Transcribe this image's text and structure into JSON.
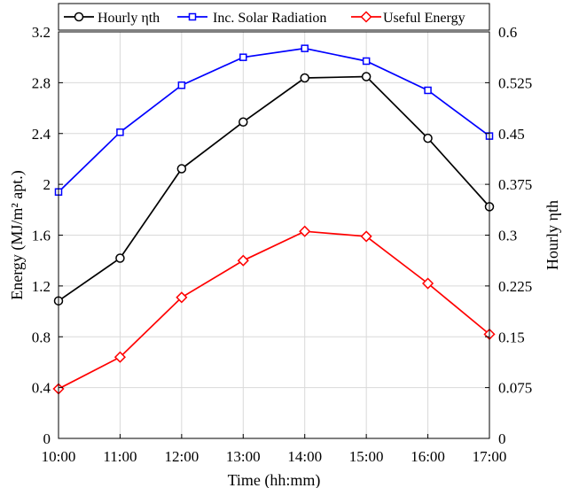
{
  "chart_data": {
    "type": "line",
    "x": [
      "10:00",
      "11:00",
      "12:00",
      "13:00",
      "14:00",
      "15:00",
      "16:00",
      "17:00"
    ],
    "xlabel": "Time (hh:mm)",
    "ylabel_left": "Energy (MJ/m² apt.)",
    "ylabel_right": "Hourly ηth",
    "ylim_left": [
      0,
      3.2
    ],
    "ylim_right": [
      0,
      0.6
    ],
    "yticks_left": [
      "0",
      "0.4",
      "0.8",
      "1.2",
      "1.6",
      "2",
      "2.4",
      "2.8",
      "3.2"
    ],
    "yticks_right": [
      "0",
      "0.075",
      "0.15",
      "0.225",
      "0.3",
      "0.375",
      "0.45",
      "0.525",
      "0.6"
    ],
    "grid": true,
    "legend_position": "top",
    "series": [
      {
        "name": "Hourly ηth",
        "axis": "right",
        "color": "#000000",
        "marker": "circle",
        "values": [
          0.203,
          0.266,
          0.398,
          0.467,
          0.532,
          0.534,
          0.443,
          0.342
        ]
      },
      {
        "name": "Inc. Solar Radiation",
        "axis": "left",
        "color": "#0000ff",
        "marker": "square",
        "values": [
          1.94,
          2.41,
          2.78,
          3.0,
          3.07,
          2.97,
          2.74,
          2.38
        ]
      },
      {
        "name": "Useful Energy",
        "axis": "left",
        "color": "#ff0000",
        "marker": "diamond",
        "values": [
          0.39,
          0.64,
          1.11,
          1.4,
          1.63,
          1.59,
          1.22,
          0.82
        ]
      }
    ]
  }
}
